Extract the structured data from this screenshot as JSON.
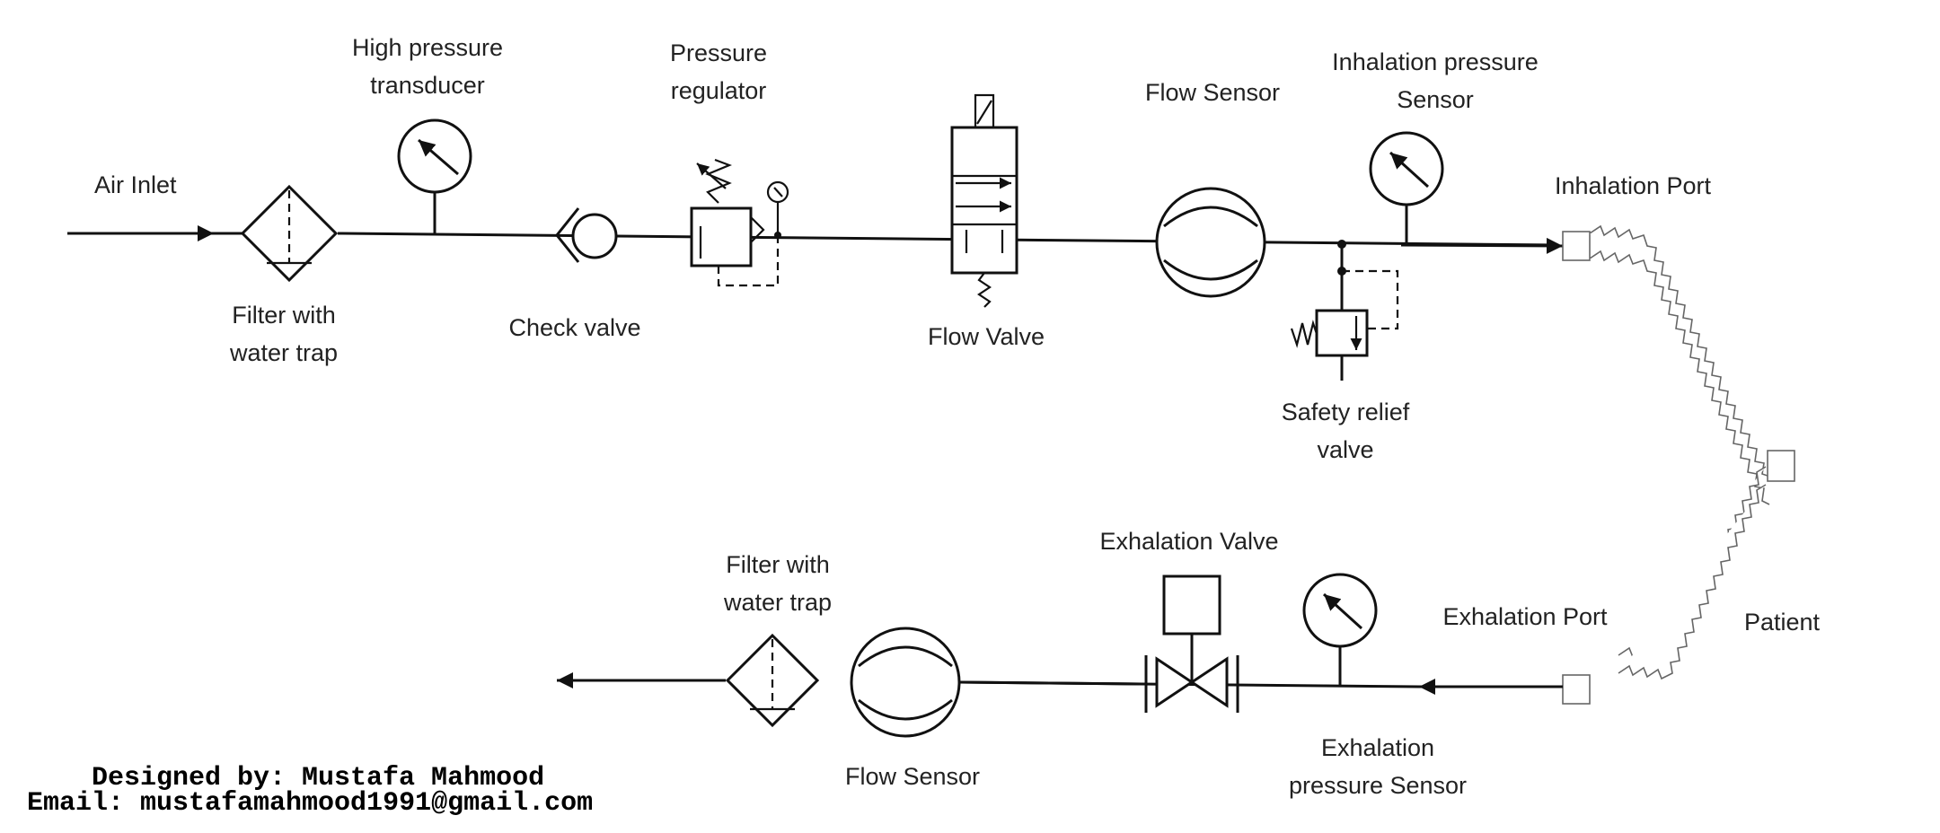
{
  "labels": {
    "air_inlet": "Air Inlet",
    "hp_transducer_1": "High pressure",
    "hp_transducer_2": "transducer",
    "pressure_reg_1": "Pressure",
    "pressure_reg_2": "regulator",
    "filter1_1": "Filter with",
    "filter1_2": "water trap",
    "check_valve": "Check valve",
    "flow_valve": "Flow Valve",
    "flow_sensor_top": "Flow Sensor",
    "inh_sensor_1": "Inhalation pressure",
    "inh_sensor_2": "Sensor",
    "inhalation_port": "Inhalation Port",
    "relief_1": "Safety relief",
    "relief_2": "valve",
    "patient": "Patient",
    "exhalation_port": "Exhalation Port",
    "exh_valve": "Exhalation Valve",
    "filter2_1": "Filter with",
    "filter2_2": "water trap",
    "flow_sensor_bottom": "Flow Sensor",
    "exh_sensor_1": "Exhalation",
    "exh_sensor_2": "pressure Sensor"
  },
  "credit": {
    "designer": "Designed by: Mustafa Mahmood",
    "email": "Email: mustafamahmood1991@gmail.com"
  }
}
